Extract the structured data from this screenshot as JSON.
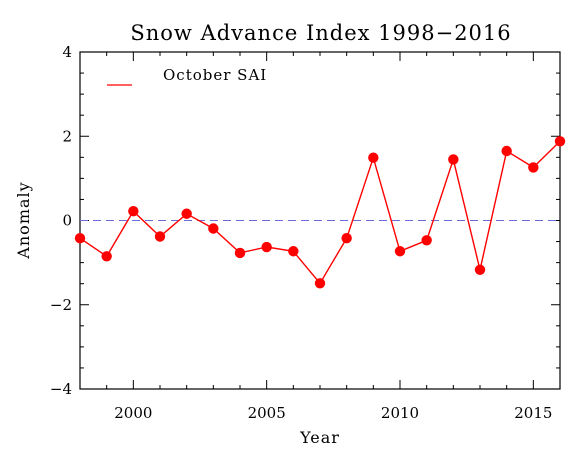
{
  "chart_data": {
    "type": "line",
    "title": "Snow Advance Index 1998−2016",
    "xlabel": "Year",
    "ylabel": "Anomaly",
    "xlim": [
      1998,
      2016
    ],
    "ylim": [
      -4,
      4
    ],
    "x_ticks": [
      2000,
      2005,
      2010,
      2015
    ],
    "x_tick_labels": [
      "2000",
      "2005",
      "2010",
      "2015"
    ],
    "y_ticks": [
      -4,
      -2,
      0,
      2,
      4
    ],
    "y_tick_labels": [
      "−4",
      "−2",
      "0",
      "2",
      "4"
    ],
    "grid": false,
    "legend_position": "top-left",
    "reference_line": {
      "y": 0,
      "style": "dashed",
      "color": "#6b6bd6"
    },
    "series": [
      {
        "name": "October SAI",
        "color": "#ff0000",
        "marker": "circle",
        "x": [
          1998,
          1999,
          2000,
          2001,
          2002,
          2003,
          2004,
          2005,
          2006,
          2007,
          2008,
          2009,
          2010,
          2011,
          2012,
          2013,
          2014,
          2015,
          2016
        ],
        "y": [
          -0.42,
          -0.85,
          0.22,
          -0.38,
          0.16,
          -0.19,
          -0.77,
          -0.63,
          -0.73,
          -1.49,
          -0.42,
          1.49,
          -0.73,
          -0.47,
          1.45,
          -1.17,
          1.65,
          1.26,
          1.88
        ]
      }
    ]
  }
}
